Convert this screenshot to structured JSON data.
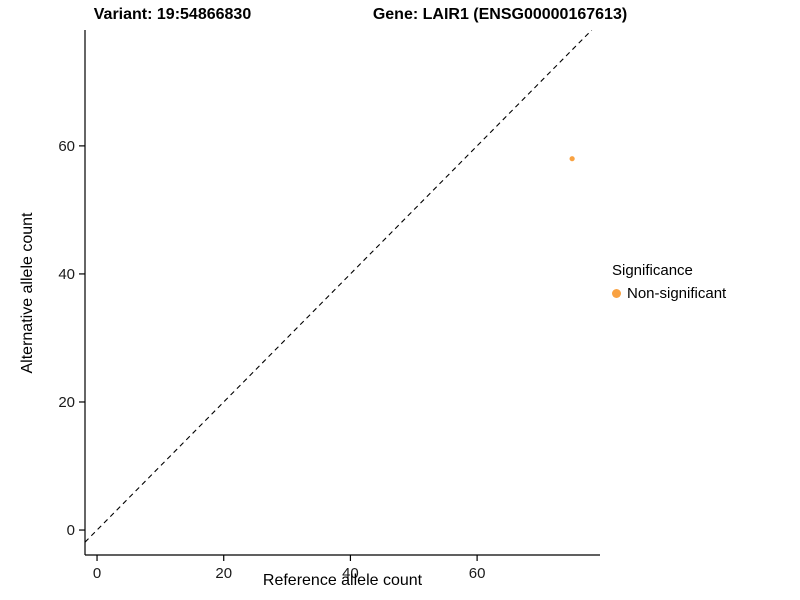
{
  "titles": {
    "left": "Variant: 19:54866830",
    "right": "Gene: LAIR1 (ENSG00000167613)"
  },
  "chart_data": {
    "type": "scatter",
    "title_left": "Variant: 19:54866830",
    "title_right": "Gene: LAIR1 (ENSG00000167613)",
    "xlabel": "Reference allele count",
    "ylabel": "Alternative allele count",
    "xlim": [
      -1.9,
      79.4
    ],
    "ylim": [
      -3.9,
      78.1
    ],
    "xticks": [
      0,
      20,
      40,
      60
    ],
    "yticks": [
      0,
      20,
      40,
      60
    ],
    "grid": false,
    "identity_line": {
      "style": "dashed",
      "color": "#000000",
      "note": "y = x reference line"
    },
    "series": [
      {
        "name": "Non-significant",
        "color": "#F9A242",
        "points": [
          {
            "x": 75,
            "y": 58
          }
        ]
      }
    ],
    "legend": {
      "title": "Significance",
      "position": "right",
      "entries": [
        {
          "label": "Non-significant",
          "color": "#F9A242"
        }
      ]
    }
  }
}
